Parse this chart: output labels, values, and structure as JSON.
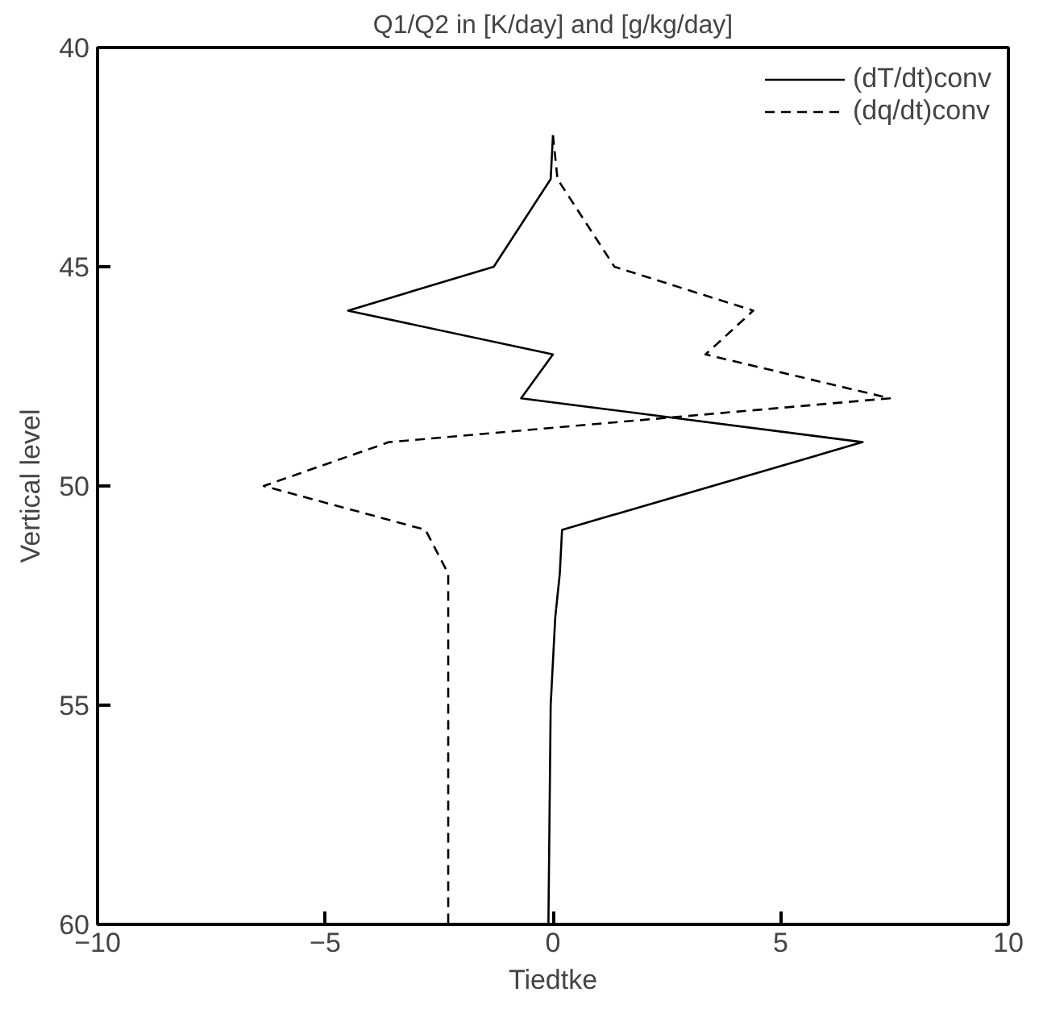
{
  "chart_data": {
    "type": "line",
    "title": "Q1/Q2 in [K/day] and [g/kg/day]",
    "xlabel": "Tiedtke",
    "ylabel": "Vertical level",
    "xlim": [
      -10,
      10
    ],
    "xticks": [
      -10,
      -5,
      0,
      5,
      10
    ],
    "ylim": [
      60,
      40
    ],
    "yticks": [
      40,
      45,
      50,
      55,
      60
    ],
    "grid": false,
    "legend": "top right",
    "marker": "none",
    "series": [
      {
        "name": "(dT/dt)conv",
        "color": "#000000",
        "line_style": "solid",
        "x": [
          0,
          -0.05,
          -1.3,
          -4.5,
          0,
          -0.7,
          6.8,
          0.2,
          0.15,
          0.05,
          0,
          -0.05,
          -0.1
        ],
        "values": [
          42,
          43,
          45,
          46,
          47,
          48,
          49,
          51,
          52,
          53,
          54,
          55,
          60
        ]
      },
      {
        "name": "(dq/dt)conv",
        "color": "#000000",
        "line_style": "dashed",
        "x": [
          0,
          0.1,
          1.35,
          4.4,
          3.35,
          7.4,
          -3.6,
          -6.35,
          -2.8,
          -2.3,
          -2.3
        ],
        "values": [
          42,
          43,
          45,
          46,
          47,
          48,
          49,
          50,
          51,
          52,
          60
        ]
      }
    ]
  }
}
